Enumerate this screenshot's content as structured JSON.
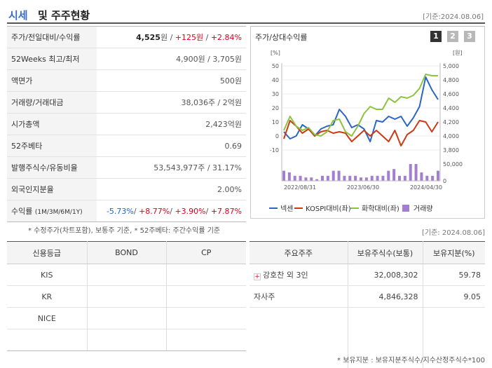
{
  "header": {
    "title_accent": "시세",
    "title_rest": "및 주주현황",
    "date": "[기준:2024.08.06]"
  },
  "summary": [
    {
      "label": "주가/전일대비/수익률",
      "price": "4,525",
      "unit": "원",
      "sep1": " / ",
      "change": "+125원",
      "sep2": " / ",
      "rate": "+2.84%"
    },
    {
      "label": "52Weeks 최고/최저",
      "value": "4,900원 / 3,705원"
    },
    {
      "label": "액면가",
      "value": "500원"
    },
    {
      "label": "거래량/거래대금",
      "value": "38,036주 / 2억원"
    },
    {
      "label": "시가총액",
      "value": "2,423억원"
    },
    {
      "label": "52주베타",
      "value": "0.69"
    },
    {
      "label": "발행주식수/유동비율",
      "value": "53,543,977주 / 31.17%"
    },
    {
      "label": "외국인지분율",
      "value": "2.00%"
    },
    {
      "label": "수익률",
      "label_sub": "(1M/3M/6M/1Y)",
      "r1": "-5.73%",
      "r2": "+8.77%",
      "r3": "+3.90%",
      "r4": "+7.87%",
      "sep": "/ "
    }
  ],
  "chart_panel": {
    "title": "주가/상대수익률",
    "pages": [
      "1",
      "2",
      "3"
    ],
    "active_page": "1"
  },
  "chart_data": {
    "type": "line",
    "left_unit": "[%]",
    "right_unit": "[원]",
    "left_ticks": [
      "50",
      "40",
      "30",
      "20",
      "10",
      "0",
      "-10"
    ],
    "right_ticks": [
      "5,000",
      "4,800",
      "4,600",
      "4,400",
      "4,200",
      "4,000",
      "3,800"
    ],
    "volume_ticks": [
      "50,000",
      "0"
    ],
    "x_ticks": [
      "2022/08/31",
      "2023/06/30",
      "2024/04/30"
    ],
    "ylim_left": [
      -10,
      50
    ],
    "series": [
      {
        "name": "넥센",
        "color": "#2b66c7",
        "values": [
          3,
          -2,
          0,
          8,
          5,
          0,
          5,
          7,
          8,
          19,
          14,
          6,
          8,
          5,
          -4,
          11,
          10,
          14,
          12,
          14,
          7,
          13,
          21,
          42,
          33,
          26
        ]
      },
      {
        "name": "KOSPI대비(좌)",
        "color": "#cc3a14",
        "values": [
          -2,
          11,
          7,
          2,
          5,
          0,
          3,
          4,
          2,
          3,
          2,
          -4,
          0,
          4,
          0,
          4,
          0,
          -4,
          4,
          -7,
          1,
          4,
          11,
          10,
          3,
          10
        ]
      },
      {
        "name": "화학대비(좌)",
        "color": "#8cc43f",
        "values": [
          4,
          14,
          7,
          4,
          6,
          1,
          0,
          3,
          11,
          12,
          3,
          0,
          7,
          16,
          21,
          19,
          19,
          27,
          24,
          28,
          27,
          29,
          34,
          44,
          43,
          43
        ]
      }
    ],
    "volume": {
      "name": "거래량",
      "color": "#a47fd1",
      "values": [
        6,
        5,
        3,
        3,
        2,
        2,
        1,
        3,
        3,
        6,
        6,
        3,
        3,
        3,
        2,
        2,
        3,
        3,
        3,
        6,
        7,
        3,
        3,
        10,
        10,
        5,
        3,
        3,
        6
      ]
    }
  },
  "footnotes": {
    "left": "* 수정주가(차트포함), 보통주 기준, * 52주베타: 주간수익률 기준",
    "right": "[기준: 2024.08.06]"
  },
  "credit": {
    "headers": [
      "신용등급",
      "BOND",
      "CP"
    ],
    "rows": [
      [
        "KIS",
        "",
        ""
      ],
      [
        "KR",
        "",
        ""
      ],
      [
        "NICE",
        "",
        ""
      ],
      [
        "",
        "",
        ""
      ]
    ]
  },
  "holders": {
    "headers": [
      "주요주주",
      "보유주식수(보통)",
      "보유지분(%)"
    ],
    "rows": [
      {
        "name": "강호찬 외 3인",
        "shares": "32,008,302",
        "pct": "59.78"
      },
      {
        "name": "자사주",
        "shares": "4,846,328",
        "pct": "9.05"
      }
    ],
    "note": "* 보유지분 : 보유지분주식수/지수산정주식수*100"
  }
}
